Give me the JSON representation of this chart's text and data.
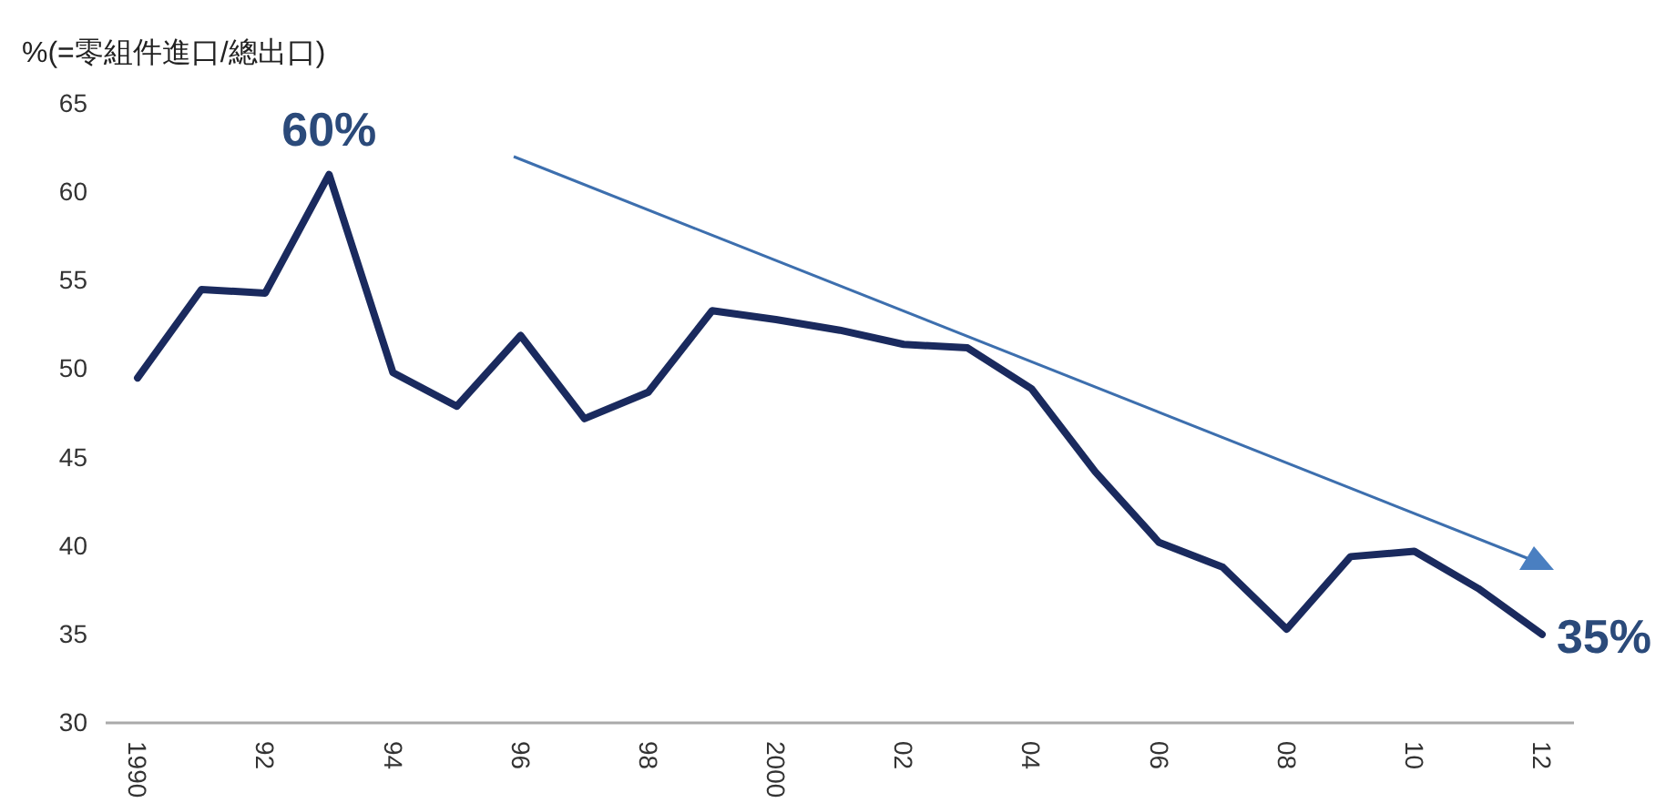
{
  "chart_data": {
    "type": "line",
    "ylabel": "%(=零組件進口/總出口)",
    "x": [
      1990,
      1991,
      1992,
      1993,
      1994,
      1995,
      1996,
      1997,
      1998,
      1999,
      2000,
      2001,
      2002,
      2003,
      2004,
      2005,
      2006,
      2007,
      2008,
      2009,
      2010,
      2011,
      2012
    ],
    "series": [
      {
        "color": "#1a2a5e",
        "values": [
          49.5,
          54.5,
          54.3,
          61.0,
          49.8,
          47.9,
          51.9,
          47.2,
          48.7,
          53.3,
          52.8,
          52.2,
          51.4,
          51.2,
          48.9,
          44.2,
          40.2,
          38.8,
          35.3,
          39.4,
          39.7,
          37.6,
          35.0
        ]
      }
    ],
    "xlim": [
      1989.5,
      2012.5
    ],
    "xticks": [
      {
        "value": 1990,
        "label": "1990"
      },
      {
        "value": 1992,
        "label": "92"
      },
      {
        "value": 1994,
        "label": "94"
      },
      {
        "value": 1996,
        "label": "96"
      },
      {
        "value": 1998,
        "label": "98"
      },
      {
        "value": 2000,
        "label": "2000"
      },
      {
        "value": 2002,
        "label": "02"
      },
      {
        "value": 2004,
        "label": "04"
      },
      {
        "value": 2006,
        "label": "06"
      },
      {
        "value": 2008,
        "label": "08"
      },
      {
        "value": 2010,
        "label": "10"
      },
      {
        "value": 2012,
        "label": "12"
      }
    ],
    "ylim": [
      30,
      65
    ],
    "yticks": [
      30,
      35,
      40,
      45,
      50,
      55,
      60,
      65
    ],
    "annotations": [
      {
        "text": "60%",
        "x": 1993,
        "y": 61.0
      },
      {
        "text": "35%",
        "x": 2012,
        "y": 35.0
      }
    ],
    "grid": false,
    "marker": "none",
    "line_style": "solid"
  }
}
